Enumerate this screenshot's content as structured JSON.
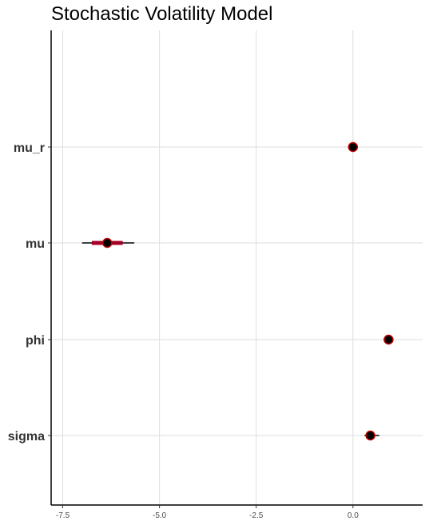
{
  "chart_data": {
    "type": "interval",
    "title": "Stochastic Volatility Model",
    "xlabel": "",
    "ylabel": "",
    "xlim": [
      -7.8,
      1.8
    ],
    "x_ticks": [
      -7.5,
      -5.0,
      -2.5,
      0.0
    ],
    "x_tick_labels": [
      "-7.5",
      "-5.0",
      "-2.5",
      "0.0"
    ],
    "grid": true,
    "parameters": [
      "mu_r",
      "mu",
      "phi",
      "sigma"
    ],
    "points": [
      {
        "param": "mu_r",
        "median": 0.0,
        "inner": [
          -0.03,
          0.03
        ],
        "outer": [
          -0.06,
          0.06
        ]
      },
      {
        "param": "mu",
        "median": -6.35,
        "inner": [
          -6.75,
          -5.95
        ],
        "outer": [
          -7.0,
          -5.65
        ]
      },
      {
        "param": "phi",
        "median": 0.92,
        "inner": [
          0.89,
          0.95
        ],
        "outer": [
          0.87,
          0.97
        ]
      },
      {
        "param": "sigma",
        "median": 0.45,
        "inner": [
          0.35,
          0.55
        ],
        "outer": [
          0.3,
          0.68
        ]
      }
    ],
    "colors": {
      "point_fill": "#000000",
      "point_stroke": "#c00000",
      "inner_interval": "#a50026",
      "outer_interval": "#000000"
    }
  }
}
